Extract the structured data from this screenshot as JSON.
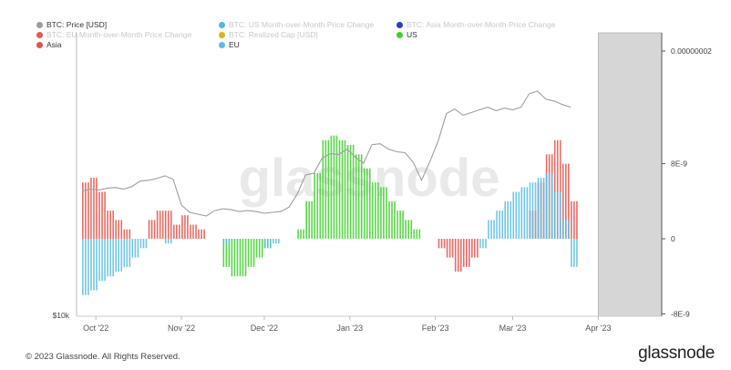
{
  "footer": {
    "copyright": "© 2023 Glassnode. All Rights Reserved.",
    "brand": "glassnode"
  },
  "watermark": "glassnode",
  "legend": [
    {
      "label": "BTC: Price [USD]",
      "color": "#9e9e9e",
      "faded": false
    },
    {
      "label": "BTC: US Month-over-Month Price Change",
      "color": "#4fb9d6",
      "faded": true
    },
    {
      "label": "BTC: Asia Month-over-Month Price Change",
      "color": "#2d3cc4",
      "faded": true
    },
    {
      "label": "BTC: EU Month-over-Month Price Change",
      "color": "#e8574f",
      "faded": true
    },
    {
      "label": "BTC: Realized Cap [USD]",
      "color": "#d7b71c",
      "faded": true
    },
    {
      "label": "US",
      "color": "#3ecf2c",
      "faded": false
    },
    {
      "label": "Asia",
      "color": "#e2524a",
      "faded": false
    },
    {
      "label": "EU",
      "color": "#58bde0",
      "faded": false
    }
  ],
  "chart_data": {
    "type": "bar",
    "x_tick_labels": [
      "Oct '22",
      "Nov '22",
      "Dec '22",
      "Jan '23",
      "Feb '23",
      "Mar '23",
      "Apr '23"
    ],
    "y_left_tick_labels": [
      "$10k"
    ],
    "y_right_tick_labels": [
      "0.00000002",
      "8E-9",
      "0",
      "-8E-9"
    ],
    "y_right_range": [
      -8e-09,
      2e-08
    ],
    "highlight_region": [
      "2023-04-01",
      "2023-04-24"
    ],
    "colors": {
      "US": "#3ecf2c",
      "Asia": "#e2524a",
      "EU": "#58bde0",
      "price": "#9e9e9e"
    },
    "series": [
      {
        "name": "US",
        "start": "2022-09-26",
        "step_days": 3,
        "values": [
          0,
          0,
          0,
          0,
          0,
          0,
          0,
          0,
          0,
          0,
          0,
          0,
          0,
          0,
          0,
          0,
          0,
          -3e-09,
          -4e-09,
          -4e-09,
          -3e-09,
          -2e-09,
          -1e-09,
          0,
          0,
          0,
          1e-09,
          4e-09,
          7e-09,
          1.05e-08,
          1.1e-08,
          1.05e-08,
          1e-08,
          9e-09,
          7.5e-09,
          6e-09,
          5.5e-09,
          4e-09,
          3e-09,
          2e-09,
          1e-09,
          0,
          0,
          0,
          0,
          0,
          0,
          0,
          0,
          0,
          0,
          0,
          0,
          0,
          0,
          0,
          0,
          0,
          0,
          0
        ]
      },
      {
        "name": "Asia",
        "start": "2022-09-26",
        "step_days": 3,
        "values": [
          6e-09,
          6.5e-09,
          5e-09,
          3e-09,
          2e-09,
          1e-09,
          0,
          0,
          2e-09,
          3e-09,
          3e-09,
          1.5e-09,
          2.5e-09,
          1.5e-09,
          1e-09,
          0,
          0,
          0,
          0,
          0,
          0,
          0,
          0,
          0,
          0,
          0,
          0,
          0,
          0,
          0,
          0,
          0,
          0,
          0,
          0,
          0,
          0,
          0,
          0,
          0,
          0,
          0,
          0,
          -1e-09,
          -2e-09,
          -3.5e-09,
          -3e-09,
          -2e-09,
          0,
          0,
          0,
          0,
          0,
          0,
          3e-09,
          6e-09,
          9e-09,
          1.05e-08,
          8e-09,
          4e-09
        ]
      },
      {
        "name": "EU",
        "start": "2022-09-26",
        "step_days": 3,
        "values": [
          -6e-09,
          -5.5e-09,
          -4.5e-09,
          -4e-09,
          -3.5e-09,
          -3e-09,
          -2e-09,
          -1e-09,
          0,
          0,
          -5e-10,
          0,
          0,
          0,
          0,
          0,
          0,
          -5e-10,
          0,
          0,
          0,
          0,
          -1e-09,
          -5e-10,
          0,
          0,
          0,
          0,
          0,
          0,
          0,
          0,
          0,
          0,
          0,
          0,
          0,
          0,
          0,
          0,
          0,
          0,
          0,
          0,
          0,
          0,
          0,
          0,
          -1e-09,
          2e-09,
          3e-09,
          4e-09,
          5e-09,
          5.5e-09,
          6e-09,
          6.5e-09,
          7e-09,
          5e-09,
          2e-09,
          -3e-09
        ]
      }
    ],
    "price_series": {
      "name": "BTC: Price [USD]",
      "start": "2022-09-26",
      "step_days": 3,
      "values": [
        19100,
        19300,
        19200,
        19400,
        19500,
        19300,
        19600,
        20200,
        20300,
        20500,
        20800,
        20400,
        17500,
        16700,
        16500,
        16300,
        16900,
        17100,
        17000,
        16800,
        16900,
        16800,
        16600,
        16700,
        16800,
        17300,
        18800,
        20900,
        21100,
        22800,
        23300,
        23200,
        23800,
        22900,
        22200,
        24300,
        24400,
        23800,
        23500,
        23400,
        22300,
        20300,
        22400,
        24700,
        27800,
        28300,
        27600,
        27900,
        28200,
        28500,
        28100,
        28400,
        28200,
        28500,
        30000,
        30300,
        29400,
        29200,
        28800,
        28500
      ]
    }
  }
}
